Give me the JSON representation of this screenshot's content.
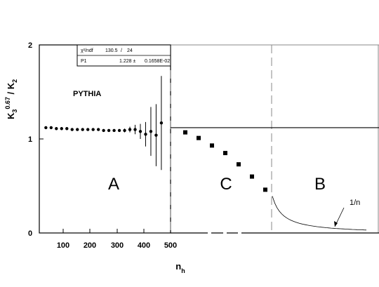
{
  "chart_data": {
    "type": "scatter",
    "ylabel_parts": {
      "k3": "K",
      "sub3": "3",
      "exp": "0.67",
      "slash": " / K",
      "sub2": "2"
    },
    "xlabel_parts": {
      "n": "n",
      "sub": "h"
    },
    "ylim": [
      0,
      2
    ],
    "yticks": [
      "0",
      "1",
      "2"
    ],
    "left_panel": {
      "xlim": [
        0,
        500
      ],
      "xticks": [
        "100",
        "200",
        "300",
        "400",
        "500"
      ],
      "generator": "PYTHIA",
      "stats": [
        {
          "name": "χ²/ndf",
          "value": "130.5",
          "sep": "/",
          "extra": "24"
        },
        {
          "name": "P1",
          "value": "1.228 ±",
          "sep": "",
          "extra": "0.1658E-02"
        }
      ],
      "points": [
        {
          "x": 25,
          "y": 1.12,
          "err": 0.01
        },
        {
          "x": 45,
          "y": 1.12,
          "err": 0.01
        },
        {
          "x": 65,
          "y": 1.11,
          "err": 0.01
        },
        {
          "x": 85,
          "y": 1.11,
          "err": 0.01
        },
        {
          "x": 105,
          "y": 1.11,
          "err": 0.01
        },
        {
          "x": 125,
          "y": 1.1,
          "err": 0.01
        },
        {
          "x": 145,
          "y": 1.1,
          "err": 0.01
        },
        {
          "x": 165,
          "y": 1.1,
          "err": 0.01
        },
        {
          "x": 185,
          "y": 1.1,
          "err": 0.01
        },
        {
          "x": 205,
          "y": 1.1,
          "err": 0.01
        },
        {
          "x": 225,
          "y": 1.1,
          "err": 0.01
        },
        {
          "x": 245,
          "y": 1.09,
          "err": 0.01
        },
        {
          "x": 265,
          "y": 1.09,
          "err": 0.01
        },
        {
          "x": 285,
          "y": 1.09,
          "err": 0.01
        },
        {
          "x": 305,
          "y": 1.09,
          "err": 0.01
        },
        {
          "x": 325,
          "y": 1.09,
          "err": 0.02
        },
        {
          "x": 345,
          "y": 1.1,
          "err": 0.03
        },
        {
          "x": 365,
          "y": 1.1,
          "err": 0.05
        },
        {
          "x": 385,
          "y": 1.08,
          "err": 0.08
        },
        {
          "x": 405,
          "y": 1.05,
          "err": 0.13
        },
        {
          "x": 425,
          "y": 1.08,
          "err": 0.26
        },
        {
          "x": 445,
          "y": 1.04,
          "err": 0.33
        },
        {
          "x": 465,
          "y": 1.17,
          "err": 0.5
        }
      ]
    },
    "right_panel": {
      "reference_y": 1.12,
      "regions": [
        "A",
        "C",
        "B"
      ],
      "squares": [
        1.07,
        1.01,
        0.93,
        0.85,
        0.73,
        0.6,
        0.46
      ],
      "curve_label": "1/n"
    }
  }
}
